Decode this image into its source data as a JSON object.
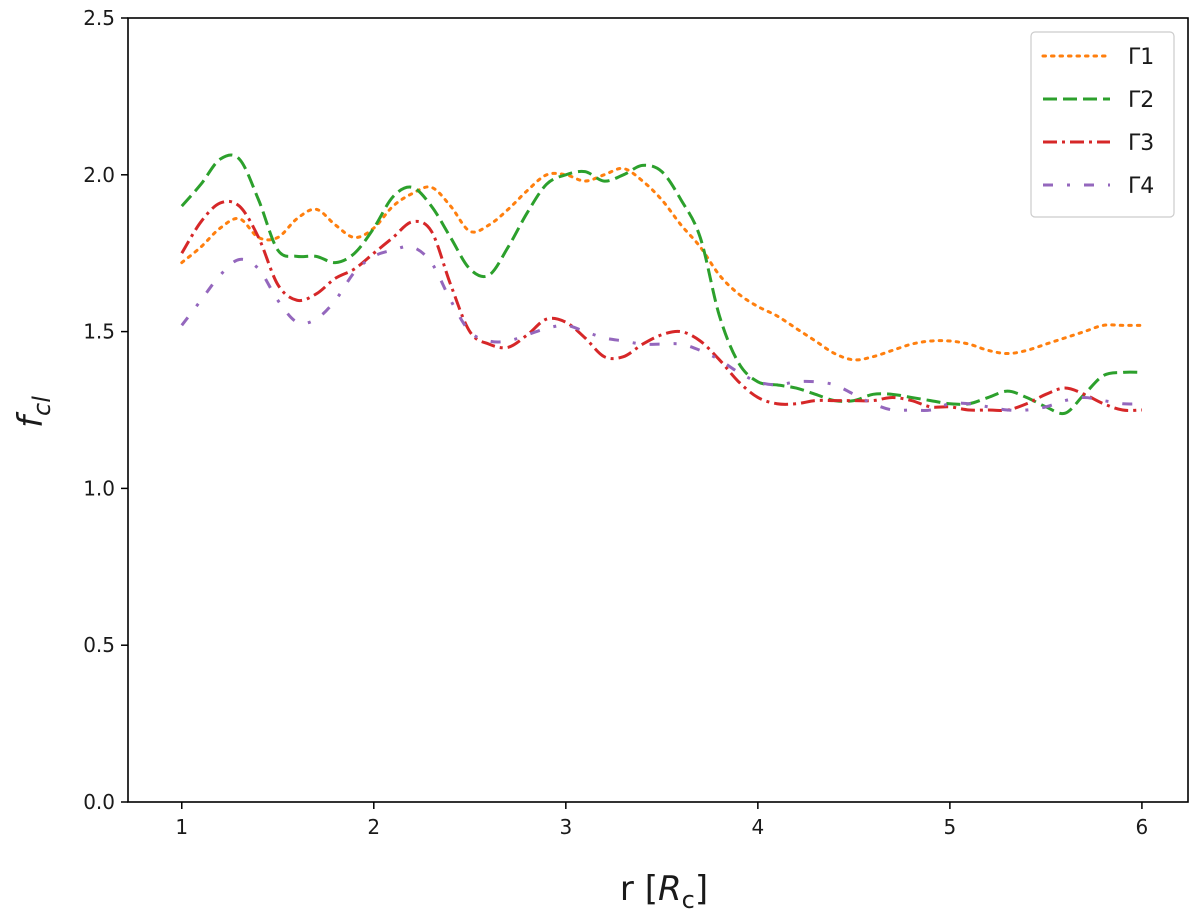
{
  "chart_data": {
    "type": "line",
    "xlabel": {
      "main": "r [",
      "sym": "R",
      "sub": "c",
      "close": "]"
    },
    "ylabel": {
      "main": "f",
      "sub": "cl"
    },
    "xlim": [
      0.72,
      6.24
    ],
    "ylim": [
      0,
      2.5
    ],
    "xticks": [
      1,
      2,
      3,
      4,
      5,
      6
    ],
    "xtick_labels": [
      "1",
      "2",
      "3",
      "4",
      "5",
      "6"
    ],
    "yticks": [
      0.0,
      0.5,
      1.0,
      1.5,
      2.0,
      2.5
    ],
    "ytick_labels": [
      "0.0",
      "0.5",
      "1.0",
      "1.5",
      "2.0",
      "2.5"
    ],
    "grid": false,
    "legend_position": "top-right",
    "series": [
      {
        "name": "Γ1",
        "color": "#ff7f0e",
        "linestyle": "dotted",
        "x": [
          1.0,
          1.1,
          1.2,
          1.3,
          1.4,
          1.5,
          1.6,
          1.7,
          1.8,
          1.9,
          2.0,
          2.1,
          2.2,
          2.3,
          2.4,
          2.5,
          2.6,
          2.7,
          2.8,
          2.9,
          3.0,
          3.1,
          3.2,
          3.3,
          3.4,
          3.5,
          3.6,
          3.7,
          3.8,
          3.9,
          4.0,
          4.1,
          4.2,
          4.3,
          4.4,
          4.5,
          4.6,
          4.7,
          4.8,
          4.9,
          5.0,
          5.1,
          5.2,
          5.3,
          5.4,
          5.5,
          5.6,
          5.7,
          5.8,
          5.9,
          6.0
        ],
        "y": [
          1.72,
          1.77,
          1.83,
          1.86,
          1.8,
          1.8,
          1.86,
          1.89,
          1.84,
          1.8,
          1.83,
          1.9,
          1.94,
          1.96,
          1.9,
          1.82,
          1.84,
          1.89,
          1.95,
          2.0,
          2.0,
          1.98,
          2.0,
          2.02,
          1.98,
          1.92,
          1.84,
          1.77,
          1.68,
          1.62,
          1.58,
          1.55,
          1.51,
          1.47,
          1.43,
          1.41,
          1.42,
          1.44,
          1.46,
          1.47,
          1.47,
          1.46,
          1.44,
          1.43,
          1.44,
          1.46,
          1.48,
          1.5,
          1.52,
          1.52,
          1.52
        ]
      },
      {
        "name": "Γ2",
        "color": "#2ca02c",
        "linestyle": "dashed",
        "x": [
          1.0,
          1.1,
          1.2,
          1.3,
          1.4,
          1.5,
          1.6,
          1.7,
          1.8,
          1.9,
          2.0,
          2.1,
          2.2,
          2.3,
          2.4,
          2.5,
          2.6,
          2.7,
          2.8,
          2.9,
          3.0,
          3.1,
          3.2,
          3.3,
          3.4,
          3.5,
          3.6,
          3.7,
          3.8,
          3.9,
          4.0,
          4.1,
          4.2,
          4.3,
          4.4,
          4.5,
          4.6,
          4.7,
          4.8,
          4.9,
          5.0,
          5.1,
          5.2,
          5.3,
          5.4,
          5.5,
          5.6,
          5.7,
          5.8,
          5.9,
          6.0
        ],
        "y": [
          1.9,
          1.97,
          2.05,
          2.05,
          1.92,
          1.76,
          1.74,
          1.74,
          1.72,
          1.75,
          1.83,
          1.93,
          1.96,
          1.9,
          1.8,
          1.7,
          1.68,
          1.77,
          1.88,
          1.97,
          2.0,
          2.01,
          1.98,
          2.0,
          2.03,
          2.01,
          1.92,
          1.8,
          1.55,
          1.4,
          1.34,
          1.33,
          1.32,
          1.3,
          1.28,
          1.28,
          1.3,
          1.3,
          1.29,
          1.28,
          1.27,
          1.27,
          1.29,
          1.31,
          1.29,
          1.26,
          1.24,
          1.3,
          1.36,
          1.37,
          1.37
        ]
      },
      {
        "name": "Γ3",
        "color": "#d62728",
        "linestyle": "dashdot",
        "x": [
          1.0,
          1.1,
          1.2,
          1.3,
          1.4,
          1.5,
          1.6,
          1.7,
          1.8,
          1.9,
          2.0,
          2.1,
          2.2,
          2.3,
          2.4,
          2.5,
          2.6,
          2.7,
          2.8,
          2.9,
          3.0,
          3.1,
          3.2,
          3.3,
          3.4,
          3.5,
          3.6,
          3.7,
          3.8,
          3.9,
          4.0,
          4.1,
          4.2,
          4.3,
          4.4,
          4.5,
          4.6,
          4.7,
          4.8,
          4.9,
          5.0,
          5.1,
          5.2,
          5.3,
          5.4,
          5.5,
          5.6,
          5.7,
          5.8,
          5.9,
          6.0
        ],
        "y": [
          1.75,
          1.85,
          1.91,
          1.9,
          1.8,
          1.65,
          1.6,
          1.62,
          1.67,
          1.7,
          1.75,
          1.8,
          1.85,
          1.82,
          1.65,
          1.5,
          1.46,
          1.45,
          1.49,
          1.54,
          1.53,
          1.48,
          1.42,
          1.42,
          1.46,
          1.49,
          1.5,
          1.47,
          1.41,
          1.34,
          1.29,
          1.27,
          1.27,
          1.28,
          1.28,
          1.28,
          1.28,
          1.29,
          1.28,
          1.26,
          1.26,
          1.25,
          1.25,
          1.25,
          1.27,
          1.3,
          1.32,
          1.3,
          1.27,
          1.25,
          1.25
        ]
      },
      {
        "name": "Γ4",
        "color": "#9467bd",
        "linestyle": "loosely-dashdot",
        "x": [
          1.0,
          1.1,
          1.2,
          1.3,
          1.4,
          1.5,
          1.6,
          1.7,
          1.8,
          1.9,
          2.0,
          2.1,
          2.2,
          2.3,
          2.4,
          2.5,
          2.6,
          2.7,
          2.8,
          2.9,
          3.0,
          3.1,
          3.2,
          3.3,
          3.4,
          3.5,
          3.6,
          3.7,
          3.8,
          3.9,
          4.0,
          4.1,
          4.2,
          4.3,
          4.4,
          4.5,
          4.6,
          4.7,
          4.8,
          4.9,
          5.0,
          5.1,
          5.2,
          5.3,
          5.4,
          5.5,
          5.6,
          5.7,
          5.8,
          5.9,
          6.0
        ],
        "y": [
          1.52,
          1.6,
          1.68,
          1.73,
          1.7,
          1.6,
          1.53,
          1.54,
          1.6,
          1.69,
          1.74,
          1.76,
          1.77,
          1.72,
          1.6,
          1.5,
          1.47,
          1.47,
          1.49,
          1.51,
          1.52,
          1.5,
          1.48,
          1.47,
          1.46,
          1.46,
          1.46,
          1.44,
          1.41,
          1.37,
          1.34,
          1.33,
          1.34,
          1.34,
          1.33,
          1.3,
          1.27,
          1.25,
          1.25,
          1.25,
          1.27,
          1.27,
          1.26,
          1.25,
          1.25,
          1.26,
          1.28,
          1.29,
          1.28,
          1.27,
          1.27
        ]
      }
    ]
  }
}
